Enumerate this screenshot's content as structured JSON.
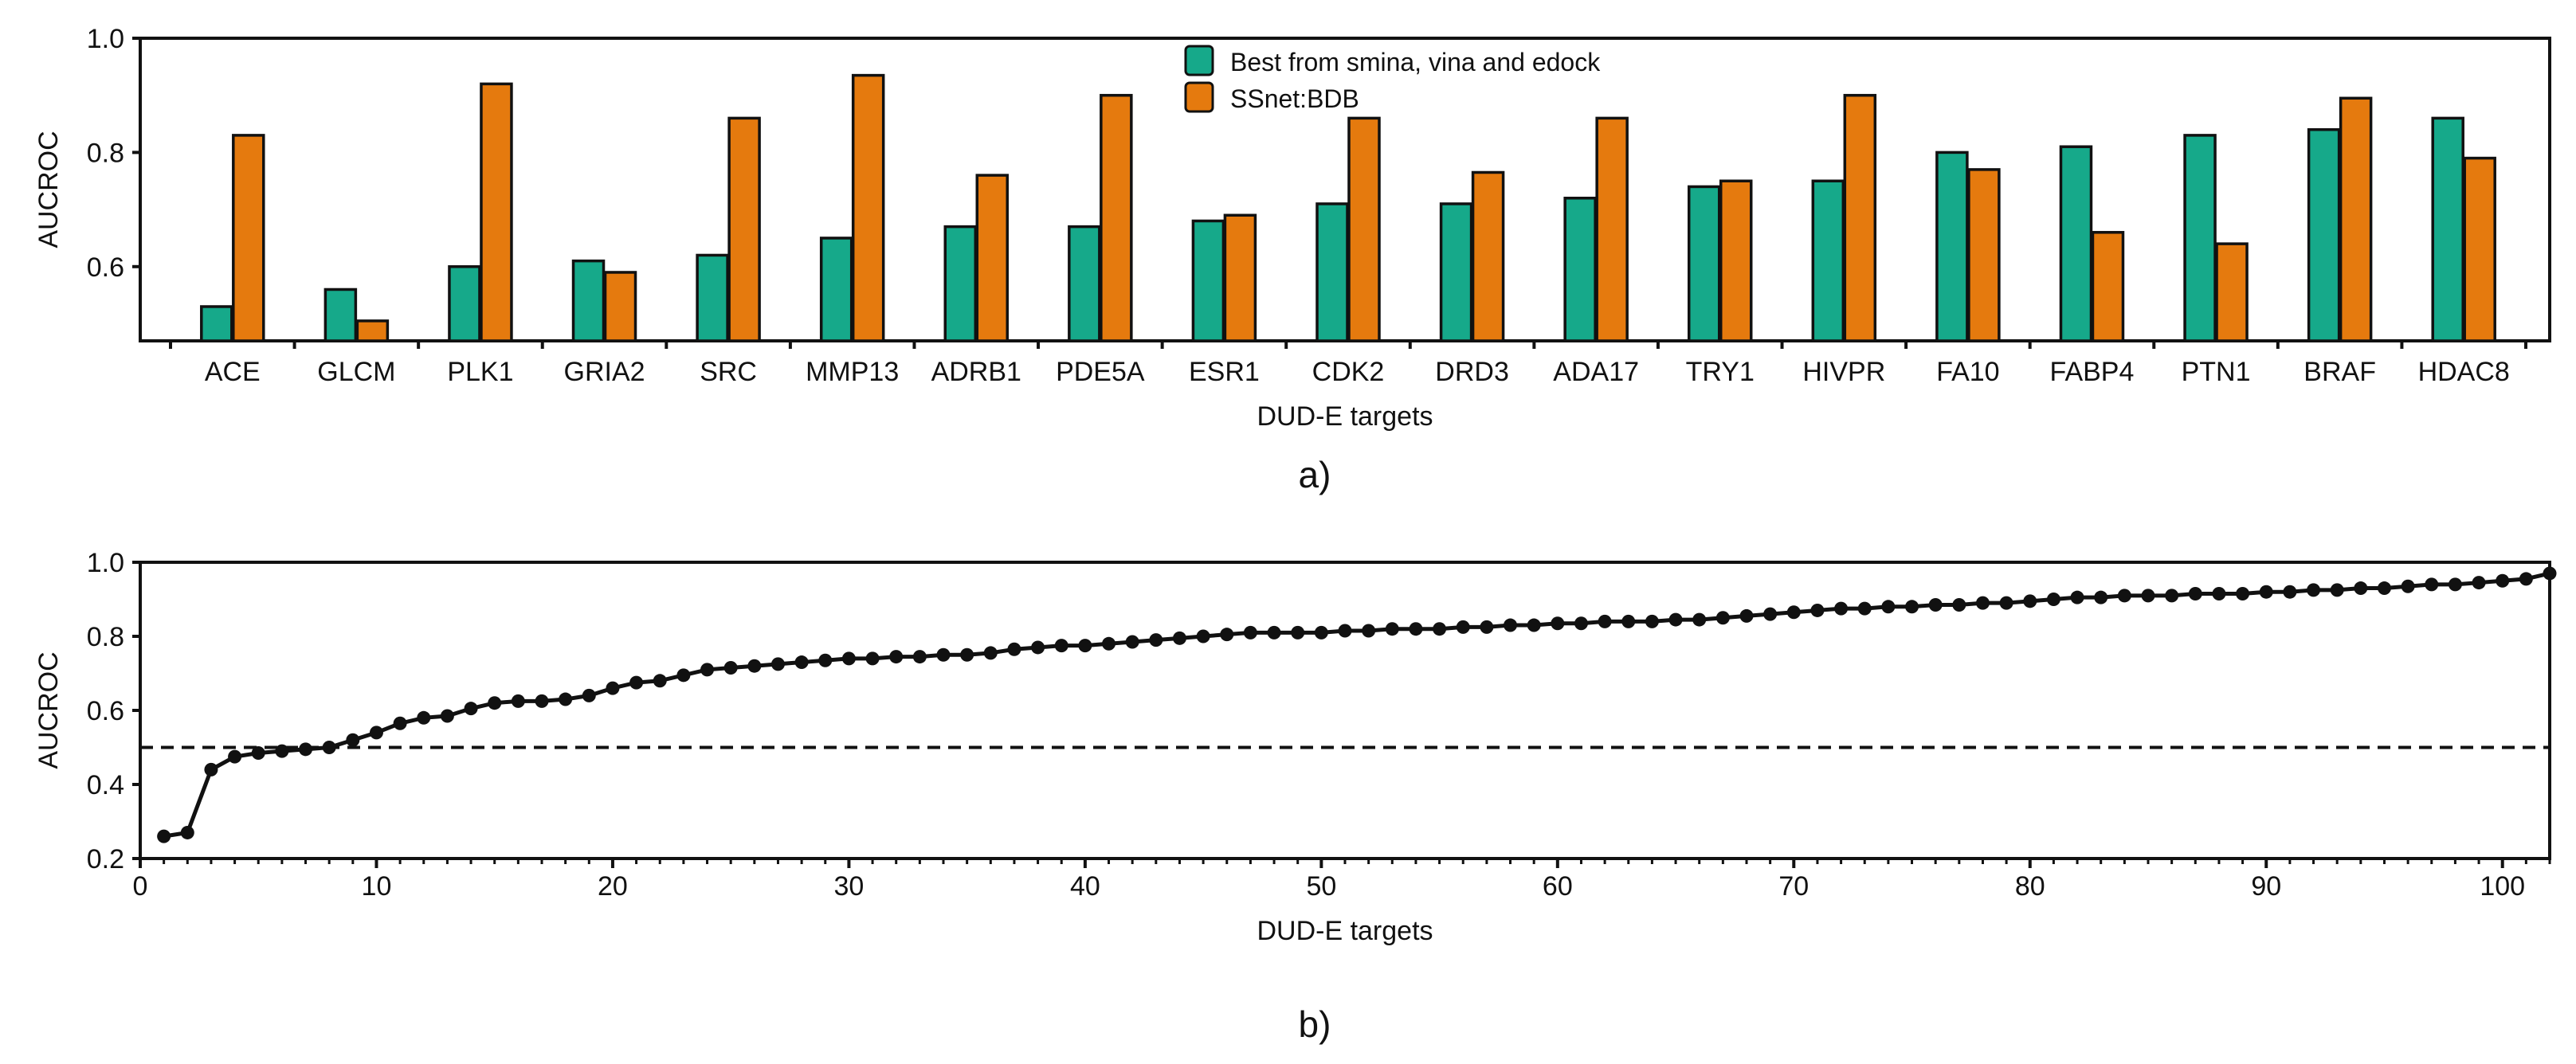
{
  "chart_data": [
    {
      "type": "bar",
      "panel_label": "a)",
      "xlabel": "DUD-E targets",
      "ylabel": "AUCROC",
      "ylim": [
        0.47,
        1.0
      ],
      "yticks": [
        0.6,
        0.8,
        1.0
      ],
      "ytick_labels": [
        "0.6",
        "0.8",
        "1.0"
      ],
      "categories": [
        "ACE",
        "GLCM",
        "PLK1",
        "GRIA2",
        "SRC",
        "MMP13",
        "ADRB1",
        "PDE5A",
        "ESR1",
        "CDK2",
        "DRD3",
        "ADA17",
        "TRY1",
        "HIVPR",
        "FA10",
        "FABP4",
        "PTN1",
        "BRAF",
        "HDAC8"
      ],
      "series": [
        {
          "name": "Best from smina, vina and edock",
          "color": "#16a98a",
          "values": [
            0.53,
            0.56,
            0.6,
            0.61,
            0.62,
            0.65,
            0.67,
            0.67,
            0.68,
            0.71,
            0.71,
            0.72,
            0.74,
            0.75,
            0.8,
            0.81,
            0.83,
            0.84,
            0.86
          ]
        },
        {
          "name": "SSnet:BDB",
          "color": "#e57a0e",
          "values": [
            0.83,
            0.505,
            0.92,
            0.59,
            0.86,
            0.935,
            0.76,
            0.9,
            0.69,
            0.86,
            0.765,
            0.86,
            0.75,
            0.9,
            0.77,
            0.66,
            0.64,
            0.895,
            0.79
          ]
        }
      ],
      "legend_position": "top-center"
    },
    {
      "type": "line",
      "panel_label": "b)",
      "xlabel": "DUD-E targets",
      "ylabel": "AUCROC",
      "xlim": [
        0,
        102
      ],
      "ylim": [
        0.2,
        1.0
      ],
      "xticks": [
        0,
        10,
        20,
        30,
        40,
        50,
        60,
        70,
        80,
        90,
        100
      ],
      "xtick_labels": [
        "0",
        "10",
        "20",
        "30",
        "40",
        "50",
        "60",
        "70",
        "80",
        "90",
        "100"
      ],
      "yticks": [
        0.2,
        0.4,
        0.6,
        0.8,
        1.0
      ],
      "ytick_labels": [
        "0.2",
        "0.4",
        "0.6",
        "0.8",
        "1.0"
      ],
      "reference_line": {
        "y": 0.5,
        "style": "dashed"
      },
      "x": [
        1,
        2,
        3,
        4,
        5,
        6,
        7,
        8,
        9,
        10,
        11,
        12,
        13,
        14,
        15,
        16,
        17,
        18,
        19,
        20,
        21,
        22,
        23,
        24,
        25,
        26,
        27,
        28,
        29,
        30,
        31,
        32,
        33,
        34,
        35,
        36,
        37,
        38,
        39,
        40,
        41,
        42,
        43,
        44,
        45,
        46,
        47,
        48,
        49,
        50,
        51,
        52,
        53,
        54,
        55,
        56,
        57,
        58,
        59,
        60,
        61,
        62,
        63,
        64,
        65,
        66,
        67,
        68,
        69,
        70,
        71,
        72,
        73,
        74,
        75,
        76,
        77,
        78,
        79,
        80,
        81,
        82,
        83,
        84,
        85,
        86,
        87,
        88,
        89,
        90,
        91,
        92,
        93,
        94,
        95,
        96,
        97,
        98,
        99,
        100,
        101,
        102
      ],
      "values": [
        0.26,
        0.27,
        0.44,
        0.475,
        0.485,
        0.49,
        0.495,
        0.5,
        0.52,
        0.54,
        0.565,
        0.58,
        0.585,
        0.605,
        0.62,
        0.625,
        0.625,
        0.63,
        0.64,
        0.66,
        0.675,
        0.68,
        0.695,
        0.71,
        0.715,
        0.72,
        0.725,
        0.73,
        0.735,
        0.74,
        0.74,
        0.745,
        0.745,
        0.75,
        0.75,
        0.755,
        0.765,
        0.77,
        0.775,
        0.775,
        0.78,
        0.785,
        0.79,
        0.795,
        0.8,
        0.805,
        0.81,
        0.81,
        0.81,
        0.81,
        0.815,
        0.815,
        0.82,
        0.82,
        0.82,
        0.825,
        0.825,
        0.83,
        0.83,
        0.835,
        0.835,
        0.84,
        0.84,
        0.84,
        0.845,
        0.845,
        0.85,
        0.855,
        0.86,
        0.865,
        0.87,
        0.875,
        0.875,
        0.88,
        0.88,
        0.885,
        0.885,
        0.89,
        0.89,
        0.895,
        0.9,
        0.905,
        0.905,
        0.91,
        0.91,
        0.91,
        0.915,
        0.915,
        0.915,
        0.92,
        0.92,
        0.925,
        0.925,
        0.93,
        0.93,
        0.935,
        0.94,
        0.94,
        0.945,
        0.95,
        0.955,
        0.97
      ]
    }
  ]
}
